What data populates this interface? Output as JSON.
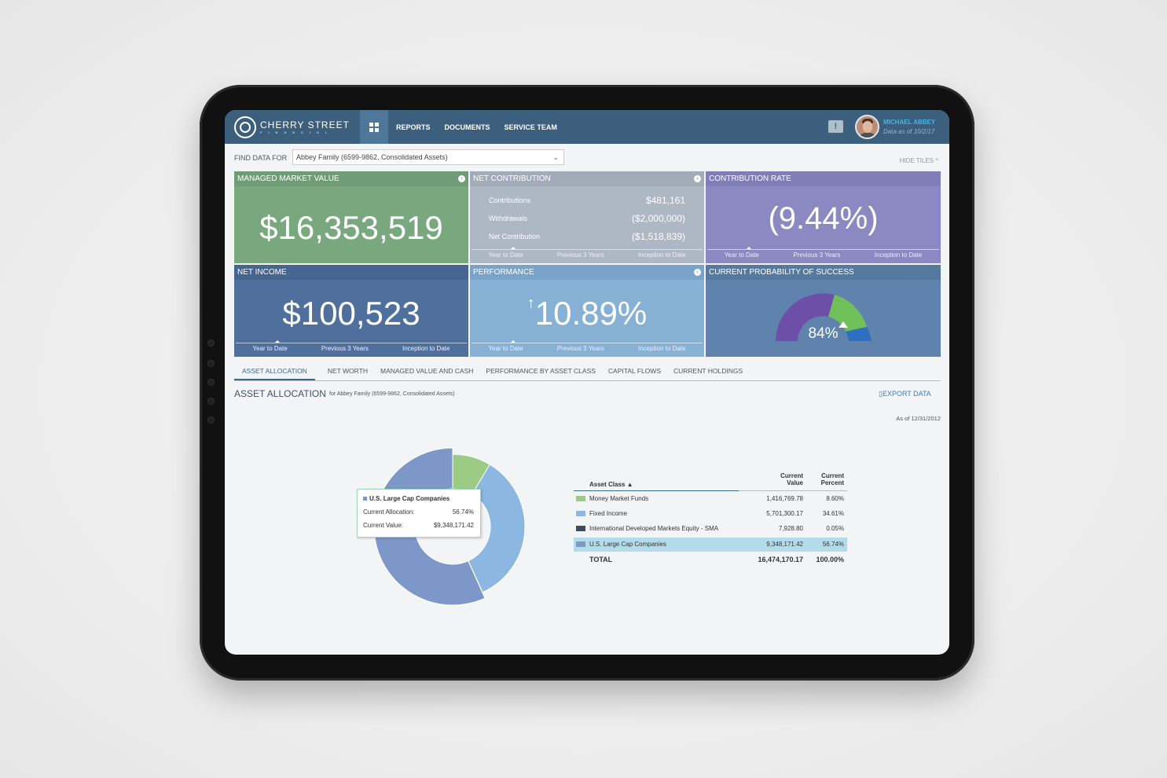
{
  "header": {
    "brand": "CHERRY STREET",
    "brand_sub": "FINANCIAL",
    "nav": [
      "REPORTS",
      "DOCUMENTS",
      "SERVICE TEAM"
    ],
    "user_name": "MICHAEL ABBEY",
    "data_date": "Data as of 10/2/17"
  },
  "find": {
    "label": "FIND DATA FOR",
    "value": "Abbey Family (6599-9862, Consolidated Assets)",
    "hide_tiles": "HIDE TILES"
  },
  "tiles": {
    "mmv": {
      "title": "MANAGED MARKET VALUE",
      "value": "$16,353,519",
      "color": "#79a87f"
    },
    "nc": {
      "title": "NET CONTRIBUTION",
      "rows": [
        {
          "label": "Contributions",
          "value": "$481,161"
        },
        {
          "label": "Withdrawals",
          "value": "($2,000,000)"
        },
        {
          "label": "Net Contribution",
          "value": "($1,518,839)"
        }
      ],
      "color": "#aeb8c4"
    },
    "cr": {
      "title": "CONTRIBUTION RATE",
      "value": "(9.44%)",
      "color": "#8c88c2"
    },
    "ni": {
      "title": "NET INCOME",
      "value": "$100,523",
      "color": "#4f6f9c"
    },
    "perf": {
      "title": "PERFORMANCE",
      "arrow": "↑",
      "value": "10.89%",
      "color": "#86b1d5"
    },
    "prob": {
      "title": "CURRENT PROBABILITY OF SUCCESS",
      "value": "84%",
      "color": "#5f83ad"
    },
    "periods": [
      "Year to Date",
      "Previous 3 Years",
      "Inception to Date"
    ]
  },
  "section_tabs": [
    "ASSET ALLOCATION",
    "NET WORTH",
    "MANAGED VALUE AND CASH",
    "PERFORMANCE BY ASSET CLASS",
    "CAPITAL FLOWS",
    "CURRENT HOLDINGS"
  ],
  "section": {
    "title": "ASSET ALLOCATION",
    "subtitle": "for Abbey Family (6599-9862, Consolidated Assets)",
    "export": "EXPORT DATA",
    "as_of": "As of 12/31/2012"
  },
  "tooltip": {
    "title": "U.S. Large Cap Companies",
    "alloc_label": "Current Allocation:",
    "alloc_value": "56.74%",
    "value_label": "Current Value:",
    "value_value": "$9,348,171.42"
  },
  "table": {
    "col_asset": "Asset Class",
    "col_value": [
      "Current",
      "Value"
    ],
    "col_percent": [
      "Current",
      "Percent"
    ],
    "rows": [
      {
        "name": "Money Market Funds",
        "value": "1,416,769.78",
        "percent": "8.60%",
        "color": "#9ccb86"
      },
      {
        "name": "Fixed Income",
        "value": "5,701,300.17",
        "percent": "34.61%",
        "color": "#8cb7e0"
      },
      {
        "name": "International Developed Markets Equity - SMA",
        "value": "7,928.80",
        "percent": "0.05%",
        "color": "#3e4b5c"
      },
      {
        "name": "U.S. Large Cap Companies",
        "value": "9,348,171.42",
        "percent": "56.74%",
        "color": "#7c97c8"
      }
    ],
    "total_label": "TOTAL",
    "total_value": "16,474,170.17",
    "total_percent": "100.00%"
  },
  "chart_data": {
    "type": "pie",
    "categories": [
      "Money Market Funds",
      "Fixed Income",
      "International Developed Markets Equity - SMA",
      "U.S. Large Cap Companies"
    ],
    "values": [
      8.6,
      34.61,
      0.05,
      56.74
    ],
    "colors": [
      "#9ccb86",
      "#8cb7e0",
      "#3e4b5c",
      "#7c97c8"
    ]
  }
}
